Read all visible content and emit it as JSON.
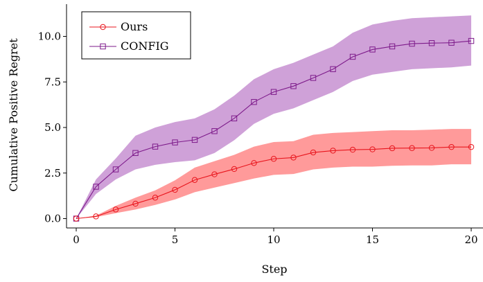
{
  "chart_data": {
    "type": "line",
    "title": "",
    "xlabel": "Step",
    "ylabel": "Cumulative Positive Regret",
    "xlim": [
      0,
      20
    ],
    "ylim": [
      -0.2,
      11.5
    ],
    "xticks": [
      0,
      5,
      10,
      15,
      20
    ],
    "xtick_labels": [
      "0",
      "5",
      "10",
      "15",
      "20"
    ],
    "yticks": [
      0.0,
      2.5,
      5.0,
      7.5,
      10.0
    ],
    "ytick_labels": [
      "0.0",
      "2.5",
      "5.0",
      "7.5",
      "10.0"
    ],
    "grid": false,
    "legend_position": "top-left",
    "x": [
      0,
      1,
      2,
      3,
      4,
      5,
      6,
      7,
      8,
      9,
      10,
      11,
      12,
      13,
      14,
      15,
      16,
      17,
      18,
      19,
      20
    ],
    "series": [
      {
        "name": "Ours",
        "marker": "circle",
        "color": "#e8141c",
        "band_color": "#ff9a9a",
        "values": [
          0.0,
          0.12,
          0.5,
          0.82,
          1.15,
          1.58,
          2.12,
          2.43,
          2.72,
          3.05,
          3.28,
          3.35,
          3.63,
          3.73,
          3.78,
          3.8,
          3.86,
          3.87,
          3.88,
          3.93,
          3.93
        ],
        "lower": [
          0.0,
          0.08,
          0.3,
          0.5,
          0.75,
          1.05,
          1.45,
          1.7,
          1.95,
          2.2,
          2.4,
          2.45,
          2.7,
          2.8,
          2.85,
          2.85,
          2.9,
          2.92,
          2.92,
          2.98,
          2.98
        ],
        "upper": [
          0.0,
          0.16,
          0.7,
          1.15,
          1.55,
          2.1,
          2.8,
          3.15,
          3.5,
          3.95,
          4.2,
          4.25,
          4.6,
          4.7,
          4.75,
          4.8,
          4.85,
          4.85,
          4.88,
          4.92,
          4.92
        ]
      },
      {
        "name": "CONFIG",
        "marker": "square",
        "color": "#7d1a8a",
        "band_color": "#cfa1d8",
        "values": [
          0.0,
          1.75,
          2.7,
          3.6,
          3.95,
          4.18,
          4.32,
          4.8,
          5.5,
          6.4,
          6.95,
          7.27,
          7.72,
          8.2,
          8.88,
          9.28,
          9.45,
          9.6,
          9.63,
          9.65,
          9.75
        ],
        "lower": [
          0.0,
          1.35,
          2.15,
          2.7,
          2.95,
          3.1,
          3.2,
          3.6,
          4.3,
          5.2,
          5.75,
          6.05,
          6.5,
          6.95,
          7.55,
          7.9,
          8.05,
          8.2,
          8.25,
          8.3,
          8.4
        ],
        "upper": [
          0.0,
          2.15,
          3.3,
          4.55,
          5.0,
          5.3,
          5.5,
          6.0,
          6.75,
          7.65,
          8.2,
          8.55,
          9.0,
          9.45,
          10.2,
          10.65,
          10.85,
          11.0,
          11.05,
          11.1,
          11.15
        ]
      }
    ]
  }
}
